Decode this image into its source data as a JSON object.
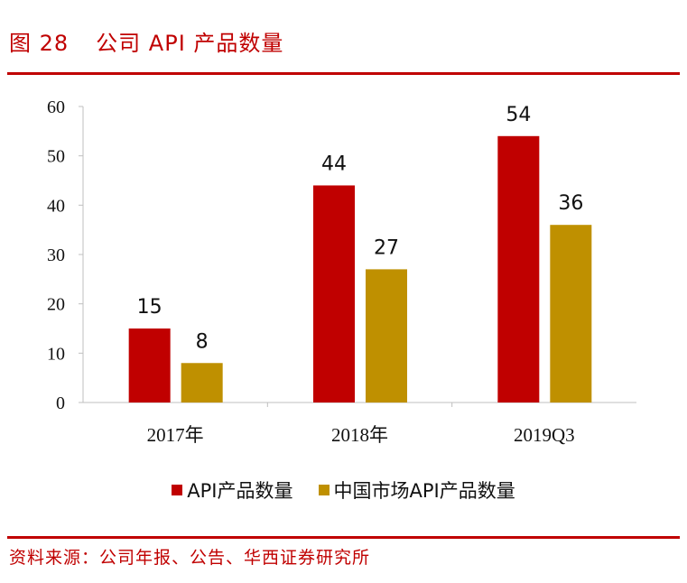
{
  "header": {
    "figure_number": "图 28",
    "title": "公司 API 产品数量"
  },
  "source": "资料来源：公司年报、公告、华西证券研究所",
  "colors": {
    "brand_red": "#c00000",
    "series1": "#c00000",
    "series2": "#bf9000"
  },
  "chart_data": {
    "type": "bar",
    "title": "公司 API 产品数量",
    "categories": [
      "2017年",
      "2018年",
      "2019Q3"
    ],
    "series": [
      {
        "name": "API产品数量",
        "values": [
          15,
          44,
          54
        ],
        "color": "#c00000"
      },
      {
        "name": "中国市场API产品数量",
        "values": [
          8,
          27,
          36
        ],
        "color": "#bf9000"
      }
    ],
    "yticks": [
      "0",
      "10",
      "20",
      "30",
      "40",
      "50",
      "60"
    ],
    "ylim": [
      0,
      60
    ],
    "xlabel": "",
    "ylabel": "",
    "grid": false,
    "legend": "bottom"
  }
}
